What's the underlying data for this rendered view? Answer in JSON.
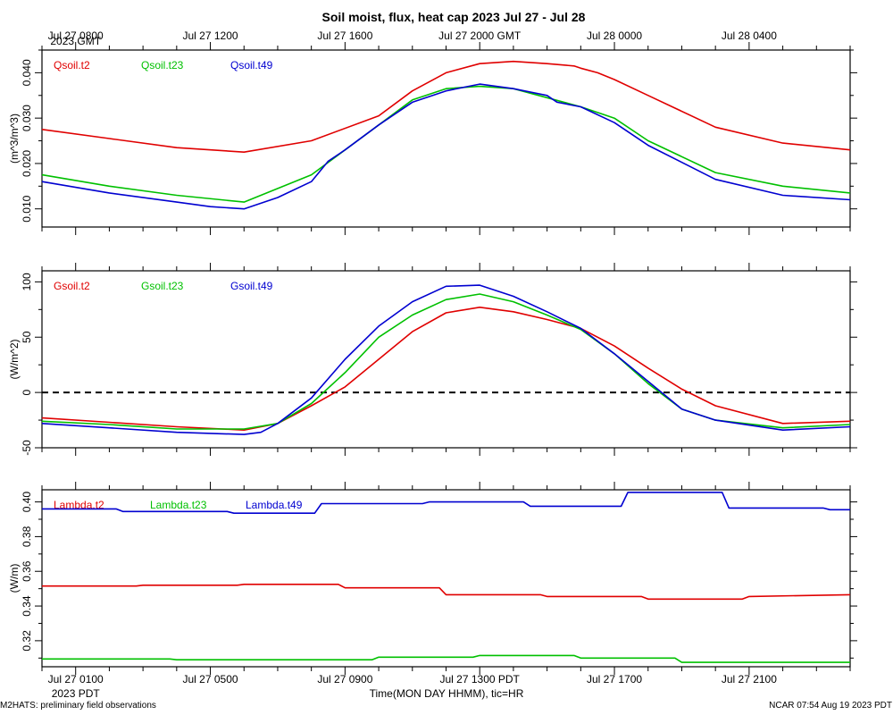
{
  "title": "Soil moist, flux, heat cap 2023 Jul 27 - Jul 28",
  "footer_left": "M2HATS: preliminary field observations",
  "footer_right": "NCAR 07:54 Aug 19 2023 PDT",
  "x_axis": {
    "hours_range": [
      0,
      24
    ],
    "tick_hours": [
      1,
      5,
      9,
      13,
      17,
      21
    ],
    "top_labels": [
      "Jul 27 0800",
      "Jul 27 1200",
      "Jul 27 1600",
      "Jul 27 2000 GMT",
      "Jul 28 0000",
      "Jul 28 0400"
    ],
    "top_timezone": "2023 GMT",
    "bottom_labels": [
      "Jul 27 0100",
      "Jul 27 0500",
      "Jul 27 0900",
      "Jul 27 1300 PDT",
      "Jul 27 1700",
      "Jul 27 2100"
    ],
    "bottom_timezone": "2023 PDT",
    "label": "Time(MON DAY HHMM), tic=HR"
  },
  "colors": {
    "red": "#e00000",
    "green": "#00c000",
    "blue": "#0000d0"
  },
  "chart_data": [
    {
      "type": "line",
      "ylabel": "(m^3/m^3)",
      "ylim": [
        0.006,
        0.045
      ],
      "yticks": [
        0.01,
        0.02,
        0.03,
        0.04
      ],
      "ytick_labels": [
        "0.010",
        "0.020",
        "0.030",
        "0.040"
      ],
      "series": [
        {
          "name": "Qsoil.t2",
          "color": "red",
          "x": [
            0,
            2,
            4,
            6,
            8,
            10,
            11,
            12,
            13,
            14,
            15,
            15.8,
            16,
            16.5,
            17,
            18,
            20,
            22,
            24
          ],
          "y": [
            0.0275,
            0.0255,
            0.0235,
            0.0225,
            0.025,
            0.0305,
            0.036,
            0.04,
            0.042,
            0.0425,
            0.042,
            0.0415,
            0.041,
            0.04,
            0.0385,
            0.035,
            0.028,
            0.0245,
            0.023
          ]
        },
        {
          "name": "Qsoil.t23",
          "color": "green",
          "x": [
            0,
            2,
            4,
            6,
            8,
            10,
            11,
            12,
            13,
            14,
            15,
            16,
            17,
            18,
            20,
            22,
            24
          ],
          "y": [
            0.0175,
            0.015,
            0.013,
            0.0115,
            0.0175,
            0.0285,
            0.034,
            0.0365,
            0.037,
            0.0365,
            0.0345,
            0.0325,
            0.03,
            0.025,
            0.018,
            0.015,
            0.0135
          ]
        },
        {
          "name": "Qsoil.t49",
          "color": "blue",
          "x": [
            0,
            2,
            4,
            5,
            6,
            7,
            8,
            8.5,
            9,
            10,
            11,
            12,
            13,
            14,
            15,
            15.3,
            16,
            17,
            18,
            20,
            22,
            24
          ],
          "y": [
            0.016,
            0.0135,
            0.0115,
            0.0105,
            0.01,
            0.0125,
            0.016,
            0.0205,
            0.023,
            0.0285,
            0.0335,
            0.036,
            0.0375,
            0.0365,
            0.035,
            0.0335,
            0.0325,
            0.029,
            0.024,
            0.0165,
            0.013,
            0.012
          ]
        }
      ]
    },
    {
      "type": "line",
      "ylabel": "(W/m^2)",
      "ylim": [
        -50,
        110
      ],
      "yticks": [
        -50,
        0,
        50,
        100
      ],
      "ytick_labels": [
        "-50",
        "0",
        "50",
        "100"
      ],
      "zero_line": true,
      "series": [
        {
          "name": "Gsoil.t2",
          "color": "red",
          "x": [
            0,
            2,
            4,
            6,
            7,
            8,
            9,
            10,
            11,
            12,
            13,
            14,
            15,
            16,
            17,
            18,
            19,
            20,
            22,
            24
          ],
          "y": [
            -23,
            -27,
            -31,
            -34,
            -28,
            -12,
            5,
            30,
            55,
            72,
            77,
            73,
            66,
            58,
            42,
            22,
            3,
            -12,
            -28,
            -26
          ]
        },
        {
          "name": "Gsoil.t23",
          "color": "green",
          "x": [
            0,
            2,
            4,
            6,
            7,
            8,
            9,
            10,
            11,
            12,
            13,
            14,
            15,
            16,
            17,
            18,
            19,
            20,
            22,
            24
          ],
          "y": [
            -26,
            -29,
            -33,
            -33,
            -28,
            -10,
            18,
            50,
            70,
            84,
            89,
            82,
            70,
            57,
            35,
            8,
            -15,
            -25,
            -32,
            -29
          ]
        },
        {
          "name": "Gsoil.t49",
          "color": "blue",
          "x": [
            0,
            2,
            4,
            6,
            6.5,
            7,
            8,
            9,
            10,
            11,
            12,
            13,
            14,
            15,
            16,
            17,
            18,
            19,
            20,
            22,
            24
          ],
          "y": [
            -28,
            -32,
            -36,
            -38,
            -36,
            -28,
            -5,
            30,
            60,
            82,
            96,
            97,
            87,
            73,
            58,
            35,
            10,
            -15,
            -25,
            -34,
            -31
          ]
        }
      ]
    },
    {
      "type": "line",
      "ylabel": "(W/m)",
      "ylim": [
        0.305,
        0.407
      ],
      "yticks": [
        0.32,
        0.34,
        0.36,
        0.38,
        0.4
      ],
      "ytick_labels": [
        "0.32",
        "0.34",
        "0.36",
        "0.38",
        "0.40"
      ],
      "series": [
        {
          "name": "Lambda.t2",
          "color": "red",
          "x": [
            0,
            2.8,
            3,
            5.8,
            6,
            8.8,
            9,
            11.8,
            12,
            14.8,
            15,
            17.8,
            18,
            20.8,
            21,
            24
          ],
          "y": [
            0.3515,
            0.3515,
            0.352,
            0.352,
            0.3525,
            0.3525,
            0.3505,
            0.3505,
            0.3465,
            0.3465,
            0.3455,
            0.3455,
            0.344,
            0.344,
            0.3455,
            0.3465
          ]
        },
        {
          "name": "Lambda.t23",
          "color": "green",
          "x": [
            0,
            3.8,
            4,
            9.8,
            10,
            12.8,
            13,
            15.8,
            16,
            18.8,
            19,
            24
          ],
          "y": [
            0.3095,
            0.3095,
            0.309,
            0.309,
            0.3105,
            0.3105,
            0.3115,
            0.3115,
            0.31,
            0.31,
            0.3075,
            0.3075
          ]
        },
        {
          "name": "Lambda.t49",
          "color": "blue",
          "x": [
            0,
            2.2,
            2.4,
            5.5,
            5.7,
            8.1,
            8.3,
            11.3,
            11.5,
            14.3,
            14.5,
            17.2,
            17.4,
            20.2,
            20.4,
            23.2,
            23.4,
            24
          ],
          "y": [
            0.396,
            0.396,
            0.3945,
            0.3945,
            0.3935,
            0.3935,
            0.399,
            0.399,
            0.4,
            0.4,
            0.3975,
            0.3975,
            0.4055,
            0.4055,
            0.3965,
            0.3965,
            0.3955,
            0.3955
          ]
        }
      ]
    }
  ]
}
